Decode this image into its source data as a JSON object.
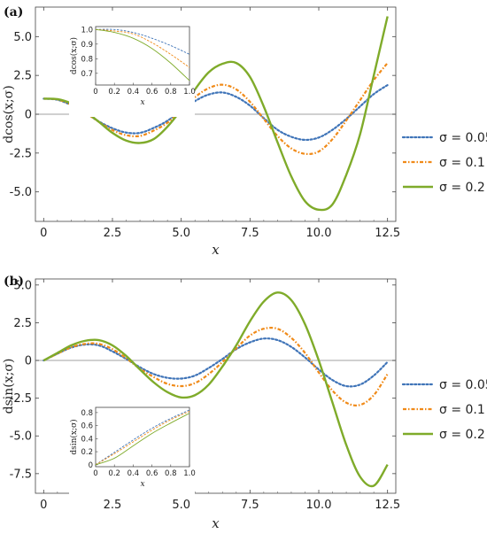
{
  "chart_data": [
    {
      "panel_label": "(a)",
      "type": "line",
      "xlabel": "x",
      "ylabel": "dcos(x;σ)",
      "xlim": [
        -0.3,
        12.8
      ],
      "ylim": [
        -6.9,
        6.9
      ],
      "xticks": [
        "0",
        "2.5",
        "5.0",
        "7.5",
        "10.0",
        "12.5"
      ],
      "xtick_values": [
        0,
        2.5,
        5.0,
        7.5,
        10.0,
        12.5
      ],
      "yticks": [
        "-5.0",
        "-2.5",
        "0",
        "2.5",
        "5.0"
      ],
      "ytick_values": [
        -5.0,
        -2.5,
        0,
        2.5,
        5.0
      ],
      "legend_position": "right",
      "series": [
        {
          "name": "σ = 0.05",
          "color": "#3f74b8",
          "dash": "dotted",
          "x": [
            0,
            0.5,
            1,
            1.5,
            2,
            2.5,
            3,
            3.5,
            4,
            4.5,
            5,
            5.5,
            6,
            6.5,
            7,
            7.5,
            8,
            8.5,
            9,
            9.5,
            10,
            10.5,
            11,
            11.5,
            12,
            12.5
          ],
          "y": [
            1.0,
            0.93,
            0.59,
            0.11,
            -0.46,
            -0.9,
            -1.18,
            -1.2,
            -0.88,
            -0.42,
            0.25,
            0.85,
            1.27,
            1.4,
            1.12,
            0.55,
            -0.25,
            -1.0,
            -1.45,
            -1.65,
            -1.5,
            -1.0,
            -0.3,
            0.5,
            1.3,
            1.88
          ]
        },
        {
          "name": "σ = 0.1",
          "color": "#f08a18",
          "dash": "dashdot",
          "x": [
            0,
            0.5,
            1,
            1.5,
            2,
            2.5,
            3,
            3.5,
            4,
            4.5,
            5,
            5.5,
            6,
            6.5,
            7,
            7.5,
            8,
            8.5,
            9,
            9.5,
            10,
            10.5,
            11,
            11.5,
            12,
            12.5
          ],
          "y": [
            1.0,
            0.95,
            0.62,
            0.12,
            -0.48,
            -1.02,
            -1.35,
            -1.4,
            -1.05,
            -0.55,
            0.25,
            1.1,
            1.68,
            1.9,
            1.6,
            0.8,
            -0.3,
            -1.4,
            -2.2,
            -2.55,
            -2.4,
            -1.6,
            -0.4,
            0.9,
            2.2,
            3.3
          ]
        },
        {
          "name": "σ = 0.2",
          "color": "#7fab2a",
          "dash": "solid",
          "x": [
            0,
            0.5,
            1,
            1.5,
            2,
            2.5,
            3,
            3.5,
            4,
            4.5,
            5,
            5.5,
            6,
            6.5,
            7,
            7.5,
            8,
            8.5,
            9,
            9.5,
            10,
            10.5,
            11,
            11.5,
            12,
            12.5
          ],
          "y": [
            1.0,
            0.97,
            0.7,
            0.2,
            -0.48,
            -1.2,
            -1.7,
            -1.85,
            -1.6,
            -0.8,
            0.3,
            1.6,
            2.7,
            3.25,
            3.3,
            2.4,
            0.5,
            -1.8,
            -4.0,
            -5.6,
            -6.15,
            -5.8,
            -3.9,
            -1.3,
            2.5,
            6.3
          ]
        }
      ],
      "inset": {
        "xlabel": "x",
        "ylabel": "dcos(x;σ)",
        "xlim": [
          0,
          1
        ],
        "ylim": [
          0.62,
          1.02
        ],
        "xticks": [
          "0",
          "0.2",
          "0.4",
          "0.6",
          "0.8",
          "1.0"
        ],
        "xtick_values": [
          0,
          0.2,
          0.4,
          0.6,
          0.8,
          1.0
        ],
        "yticks": [
          "0.7",
          "0.8",
          "0.9",
          "1.0"
        ],
        "ytick_values": [
          0.7,
          0.8,
          0.9,
          1.0
        ],
        "series": [
          {
            "x": [
              0,
              0.2,
              0.4,
              0.6,
              0.8,
              1.0
            ],
            "y": [
              1.0,
              1.0,
              0.98,
              0.94,
              0.89,
              0.83
            ]
          },
          {
            "x": [
              0,
              0.2,
              0.4,
              0.6,
              0.8,
              1.0
            ],
            "y": [
              1.0,
              0.99,
              0.97,
              0.91,
              0.83,
              0.74
            ]
          },
          {
            "x": [
              0,
              0.2,
              0.4,
              0.6,
              0.8,
              1.0
            ],
            "y": [
              1.0,
              0.98,
              0.94,
              0.87,
              0.77,
              0.65
            ]
          }
        ]
      }
    },
    {
      "panel_label": "(b)",
      "type": "line",
      "xlabel": "x",
      "ylabel": "dsin(x;σ)",
      "xlim": [
        -0.3,
        12.8
      ],
      "ylim": [
        -8.8,
        5.4
      ],
      "xticks": [
        "0",
        "2.5",
        "5.0",
        "7.5",
        "10.0",
        "12.5"
      ],
      "xtick_values": [
        0,
        2.5,
        5.0,
        7.5,
        10.0,
        12.5
      ],
      "yticks": [
        "-7.5",
        "-5.0",
        "-2.5",
        "0",
        "2.5",
        "5.0"
      ],
      "ytick_values": [
        -7.5,
        -5.0,
        -2.5,
        0,
        2.5,
        5.0
      ],
      "legend_position": "right",
      "series": [
        {
          "name": "σ = 0.05",
          "color": "#3f74b8",
          "dash": "dotted",
          "x": [
            0,
            0.5,
            1,
            1.5,
            2,
            2.5,
            3,
            3.5,
            4,
            4.5,
            5,
            5.5,
            6,
            6.5,
            7,
            7.5,
            8,
            8.5,
            9,
            9.5,
            10,
            10.5,
            11,
            11.5,
            12,
            12.5
          ],
          "y": [
            0,
            0.45,
            0.85,
            1.05,
            1.0,
            0.6,
            0.1,
            -0.45,
            -0.9,
            -1.15,
            -1.2,
            -1.0,
            -0.5,
            0.1,
            0.75,
            1.2,
            1.45,
            1.35,
            0.9,
            0.2,
            -0.6,
            -1.3,
            -1.7,
            -1.6,
            -1.0,
            -0.1
          ]
        },
        {
          "name": "σ = 0.1",
          "color": "#f08a18",
          "dash": "dashdot",
          "x": [
            0,
            0.5,
            1,
            1.5,
            2,
            2.5,
            3,
            3.5,
            4,
            4.5,
            5,
            5.5,
            6,
            6.5,
            7,
            7.5,
            8,
            8.5,
            9,
            9.5,
            10,
            10.5,
            11,
            11.5,
            12,
            12.5
          ],
          "y": [
            0,
            0.45,
            0.87,
            1.1,
            1.1,
            0.75,
            0.15,
            -0.55,
            -1.1,
            -1.55,
            -1.7,
            -1.5,
            -0.9,
            -0.1,
            0.8,
            1.65,
            2.1,
            2.1,
            1.5,
            0.5,
            -0.8,
            -2.0,
            -2.8,
            -2.95,
            -2.3,
            -0.9
          ]
        },
        {
          "name": "σ = 0.2",
          "color": "#7fab2a",
          "dash": "solid",
          "x": [
            0,
            0.5,
            1,
            1.5,
            2,
            2.5,
            3,
            3.5,
            4,
            4.5,
            5,
            5.5,
            6,
            6.5,
            7,
            7.5,
            8,
            8.5,
            9,
            9.5,
            10,
            10.5,
            11,
            11.5,
            12,
            12.5
          ],
          "y": [
            0,
            0.5,
            1.0,
            1.3,
            1.35,
            1.0,
            0.3,
            -0.6,
            -1.45,
            -2.1,
            -2.45,
            -2.3,
            -1.6,
            -0.4,
            1.0,
            2.6,
            3.9,
            4.5,
            4.0,
            2.4,
            0.0,
            -2.8,
            -5.6,
            -7.7,
            -8.3,
            -6.9
          ]
        }
      ],
      "inset": {
        "xlabel": "x",
        "ylabel": "dsin(x;σ)",
        "xlim": [
          0,
          1
        ],
        "ylim": [
          -0.03,
          0.88
        ],
        "xticks": [
          "0",
          "0.2",
          "0.4",
          "0.6",
          "0.8",
          "1.0"
        ],
        "xtick_values": [
          0,
          0.2,
          0.4,
          0.6,
          0.8,
          1.0
        ],
        "yticks": [
          "0",
          "0.2",
          "0.4",
          "0.6",
          "0.8"
        ],
        "ytick_values": [
          0,
          0.2,
          0.4,
          0.6,
          0.8
        ],
        "series": [
          {
            "x": [
              0,
              0.2,
              0.4,
              0.6,
              0.8,
              1.0
            ],
            "y": [
              0,
              0.19,
              0.38,
              0.56,
              0.71,
              0.84
            ]
          },
          {
            "x": [
              0,
              0.2,
              0.4,
              0.6,
              0.8,
              1.0
            ],
            "y": [
              0,
              0.17,
              0.35,
              0.53,
              0.69,
              0.82
            ]
          },
          {
            "x": [
              0,
              0.2,
              0.4,
              0.6,
              0.8,
              1.0
            ],
            "y": [
              0,
              0.1,
              0.29,
              0.48,
              0.64,
              0.79
            ]
          }
        ]
      }
    }
  ]
}
